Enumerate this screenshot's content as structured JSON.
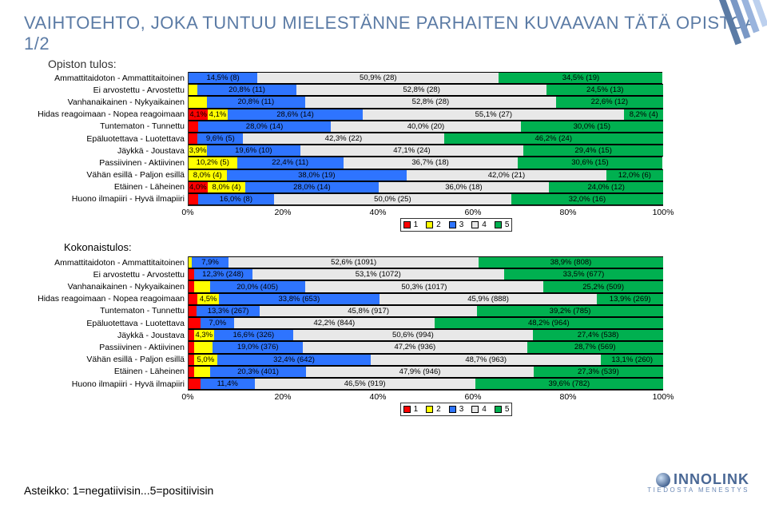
{
  "title": "VAIHTOEHTO, JOKA TUNTUU MIELESTÄNNE PARHAITEN KUVAAVAN TÄTÄ OPISTOA 1/2",
  "chart1_title": "Opiston tulos:",
  "chart2_title": "Kokonaistulos:",
  "asteikko": "Asteikko: 1=negatiivisin...5=positiivisin",
  "brand": {
    "name": "INNOLINK",
    "tagline": "TIEDOSTA MENESTYS"
  },
  "colors": {
    "c1": "#ff0000",
    "c2": "#ffff00",
    "c3": "#2e74ff",
    "c4": "#e8e8e8",
    "c5": "#00b050"
  },
  "axis_ticks": [
    "0%",
    "20%",
    "40%",
    "60%",
    "80%",
    "100%"
  ],
  "legend": [
    "1",
    "2",
    "3",
    "4",
    "5"
  ],
  "rows_labels": [
    "Ammattitaidoton - Ammattitaitoinen",
    "Ei arvostettu - Arvostettu",
    "Vanhanaikainen - Nykyaikainen",
    "Hidas reagoimaan - Nopea reagoimaan",
    "Tuntematon - Tunnettu",
    "Epäluotettava - Luotettava",
    "Jäykkä - Joustava",
    "Passiivinen - Aktiivinen",
    "Vähän esillä - Paljon esillä",
    "Etäinen - Läheinen",
    "Huono ilmapiiri - Hyvä ilmapiiri"
  ],
  "chart1": [
    [
      {
        "v": 0,
        "t": ""
      },
      {
        "v": 0,
        "t": ""
      },
      {
        "v": 14.5,
        "t": "14,5% (8)"
      },
      {
        "v": 50.9,
        "t": "50,9% (28)"
      },
      {
        "v": 34.5,
        "t": "34,5% (19)"
      }
    ],
    [
      {
        "v": 0,
        "t": ""
      },
      {
        "v": 1.9,
        "t": ""
      },
      {
        "v": 20.8,
        "t": "20,8% (11)"
      },
      {
        "v": 52.8,
        "t": "52,8% (28)"
      },
      {
        "v": 24.5,
        "t": "24,5% (13)"
      }
    ],
    [
      {
        "v": 0,
        "t": ""
      },
      {
        "v": 3.8,
        "t": ""
      },
      {
        "v": 20.8,
        "t": "20,8% (11)"
      },
      {
        "v": 52.8,
        "t": "52,8% (28)"
      },
      {
        "v": 22.6,
        "t": "22,6% (12)"
      }
    ],
    [
      {
        "v": 4.1,
        "t": "4,1%"
      },
      {
        "v": 4.1,
        "t": "4,1%"
      },
      {
        "v": 28.6,
        "t": "28,6% (14)"
      },
      {
        "v": 55.1,
        "t": "55,1% (27)"
      },
      {
        "v": 8.2,
        "t": "8,2% (4)"
      }
    ],
    [
      {
        "v": 2.0,
        "t": ""
      },
      {
        "v": 0,
        "t": ""
      },
      {
        "v": 28.0,
        "t": "28,0% (14)"
      },
      {
        "v": 40.0,
        "t": "40,0% (20)"
      },
      {
        "v": 30.0,
        "t": "30,0% (15)"
      }
    ],
    [
      {
        "v": 1.9,
        "t": ""
      },
      {
        "v": 0,
        "t": ""
      },
      {
        "v": 9.6,
        "t": "9,6% (5)"
      },
      {
        "v": 42.3,
        "t": "42,3% (22)"
      },
      {
        "v": 46.2,
        "t": "46,2% (24)"
      }
    ],
    [
      {
        "v": 0,
        "t": ""
      },
      {
        "v": 3.9,
        "t": "3,9%"
      },
      {
        "v": 19.6,
        "t": "19,6% (10)"
      },
      {
        "v": 47.1,
        "t": "47,1% (24)"
      },
      {
        "v": 29.4,
        "t": "29,4% (15)"
      }
    ],
    [
      {
        "v": 0,
        "t": ""
      },
      {
        "v": 10.2,
        "t": "10,2% (5)"
      },
      {
        "v": 22.4,
        "t": "22,4% (11)"
      },
      {
        "v": 36.7,
        "t": "36,7% (18)"
      },
      {
        "v": 30.6,
        "t": "30,6% (15)"
      }
    ],
    [
      {
        "v": 0,
        "t": ""
      },
      {
        "v": 8.0,
        "t": "8,0% (4)"
      },
      {
        "v": 38.0,
        "t": "38,0% (19)"
      },
      {
        "v": 42.0,
        "t": "42,0% (21)"
      },
      {
        "v": 12.0,
        "t": "12,0% (6)"
      }
    ],
    [
      {
        "v": 4.0,
        "t": "4,0%"
      },
      {
        "v": 8.0,
        "t": "8,0% (4)"
      },
      {
        "v": 28.0,
        "t": "28,0% (14)"
      },
      {
        "v": 36.0,
        "t": "36,0% (18)"
      },
      {
        "v": 24.0,
        "t": "24,0% (12)"
      }
    ],
    [
      {
        "v": 2.0,
        "t": ""
      },
      {
        "v": 0,
        "t": ""
      },
      {
        "v": 16.0,
        "t": "16,0% (8)"
      },
      {
        "v": 50.0,
        "t": "50,0% (25)"
      },
      {
        "v": 32.0,
        "t": "32,0% (16)"
      }
    ]
  ],
  "chart2": [
    [
      {
        "v": 0,
        "t": ""
      },
      {
        "v": 0.6,
        "t": ""
      },
      {
        "v": 7.9,
        "t": "7,9%"
      },
      {
        "v": 52.6,
        "t": "52,6% (1091)"
      },
      {
        "v": 38.9,
        "t": "38,9% (808)"
      }
    ],
    [
      {
        "v": 1.1,
        "t": ""
      },
      {
        "v": 0,
        "t": ""
      },
      {
        "v": 12.3,
        "t": "12,3% (248)"
      },
      {
        "v": 53.1,
        "t": "53,1% (1072)"
      },
      {
        "v": 33.5,
        "t": "33,5% (677)"
      }
    ],
    [
      {
        "v": 1.1,
        "t": ""
      },
      {
        "v": 3.4,
        "t": ""
      },
      {
        "v": 20.0,
        "t": "20,0% (405)"
      },
      {
        "v": 50.3,
        "t": "50,3% (1017)"
      },
      {
        "v": 25.2,
        "t": "25,2% (509)"
      }
    ],
    [
      {
        "v": 1.9,
        "t": ""
      },
      {
        "v": 4.5,
        "t": "4,5%"
      },
      {
        "v": 33.8,
        "t": "33,8% (653)"
      },
      {
        "v": 45.9,
        "t": "45,9% (888)"
      },
      {
        "v": 13.9,
        "t": "13,9% (269)"
      }
    ],
    [
      {
        "v": 1.7,
        "t": ""
      },
      {
        "v": 0,
        "t": ""
      },
      {
        "v": 13.3,
        "t": "13,3% (267)"
      },
      {
        "v": 45.8,
        "t": "45,8% (917)"
      },
      {
        "v": 39.2,
        "t": "39,2% (785)"
      }
    ],
    [
      {
        "v": 2.6,
        "t": ""
      },
      {
        "v": 0,
        "t": ""
      },
      {
        "v": 7.0,
        "t": "7,0%"
      },
      {
        "v": 42.2,
        "t": "42,2% (844)"
      },
      {
        "v": 48.2,
        "t": "48,2% (964)"
      }
    ],
    [
      {
        "v": 1.1,
        "t": ""
      },
      {
        "v": 4.3,
        "t": "4,3%"
      },
      {
        "v": 16.6,
        "t": "16,6% (326)"
      },
      {
        "v": 50.6,
        "t": "50,6% (994)"
      },
      {
        "v": 27.4,
        "t": "27,4% (538)"
      }
    ],
    [
      {
        "v": 1.2,
        "t": ""
      },
      {
        "v": 3.9,
        "t": ""
      },
      {
        "v": 19.0,
        "t": "19,0% (376)"
      },
      {
        "v": 47.2,
        "t": "47,2% (936)"
      },
      {
        "v": 28.7,
        "t": "28,7% (569)"
      }
    ],
    [
      {
        "v": 1.1,
        "t": ""
      },
      {
        "v": 5.0,
        "t": "5,0%"
      },
      {
        "v": 32.4,
        "t": "32,4% (642)"
      },
      {
        "v": 48.7,
        "t": "48,7% (963)"
      },
      {
        "v": 13.1,
        "t": "13,1% (260)"
      }
    ],
    [
      {
        "v": 1.2,
        "t": ""
      },
      {
        "v": 3.3,
        "t": ""
      },
      {
        "v": 20.3,
        "t": "20,3% (401)"
      },
      {
        "v": 47.9,
        "t": "47,9% (946)"
      },
      {
        "v": 27.3,
        "t": "27,3% (539)"
      }
    ],
    [
      {
        "v": 2.5,
        "t": ""
      },
      {
        "v": 0,
        "t": ""
      },
      {
        "v": 11.4,
        "t": "11,4%"
      },
      {
        "v": 46.5,
        "t": "46,5% (919)"
      },
      {
        "v": 39.6,
        "t": "39,6% (782)"
      }
    ]
  ]
}
